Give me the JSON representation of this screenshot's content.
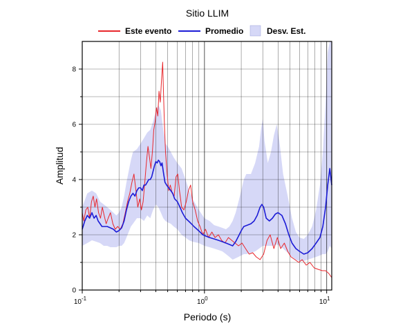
{
  "chart_data": {
    "type": "line",
    "title": "Sitio LLIM",
    "xlabel": "Periodo (s)",
    "ylabel": "Amplitud",
    "x_scale": "log",
    "xlim": [
      0.1,
      11
    ],
    "ylim": [
      0,
      9
    ],
    "x_ticks": [
      {
        "value": 0.1,
        "base": "10",
        "exp": "-1"
      },
      {
        "value": 1,
        "base": "10",
        "exp": "0"
      },
      {
        "value": 10,
        "base": "10",
        "exp": "1"
      }
    ],
    "y_ticks": [
      0,
      2,
      4,
      6,
      8
    ],
    "grid": true,
    "legend": {
      "position": "top",
      "entries": [
        {
          "label": "Este evento",
          "kind": "line",
          "color": "#e8262b"
        },
        {
          "label": "Promedio",
          "kind": "line",
          "color": "#1b1bd6"
        },
        {
          "label": "Desv. Est.",
          "kind": "patch",
          "color": "#d6d8f7"
        }
      ]
    },
    "series": [
      {
        "name": "Este evento",
        "color": "#e8262b",
        "points": [
          [
            0.1,
            2.8
          ],
          [
            0.103,
            2.5
          ],
          [
            0.107,
            2.9
          ],
          [
            0.111,
            3.0
          ],
          [
            0.115,
            2.6
          ],
          [
            0.119,
            3.2
          ],
          [
            0.123,
            3.4
          ],
          [
            0.127,
            3.0
          ],
          [
            0.131,
            3.3
          ],
          [
            0.136,
            2.8
          ],
          [
            0.141,
            2.6
          ],
          [
            0.146,
            3.0
          ],
          [
            0.151,
            2.7
          ],
          [
            0.157,
            2.4
          ],
          [
            0.163,
            2.6
          ],
          [
            0.17,
            2.8
          ],
          [
            0.178,
            2.4
          ],
          [
            0.186,
            2.2
          ],
          [
            0.195,
            2.3
          ],
          [
            0.205,
            2.2
          ],
          [
            0.215,
            2.4
          ],
          [
            0.225,
            2.8
          ],
          [
            0.235,
            3.2
          ],
          [
            0.245,
            3.5
          ],
          [
            0.255,
            3.9
          ],
          [
            0.265,
            4.2
          ],
          [
            0.275,
            3.6
          ],
          [
            0.285,
            3.0
          ],
          [
            0.295,
            3.3
          ],
          [
            0.305,
            2.9
          ],
          [
            0.315,
            3.2
          ],
          [
            0.325,
            3.9
          ],
          [
            0.335,
            4.6
          ],
          [
            0.345,
            5.2
          ],
          [
            0.355,
            4.8
          ],
          [
            0.365,
            4.4
          ],
          [
            0.375,
            5.0
          ],
          [
            0.385,
            5.8
          ],
          [
            0.395,
            6.1
          ],
          [
            0.405,
            6.6
          ],
          [
            0.415,
            6.3
          ],
          [
            0.425,
            7.2
          ],
          [
            0.435,
            6.8
          ],
          [
            0.445,
            7.6
          ],
          [
            0.455,
            8.25
          ],
          [
            0.462,
            7.2
          ],
          [
            0.47,
            6.0
          ],
          [
            0.48,
            5.0
          ],
          [
            0.495,
            4.2
          ],
          [
            0.51,
            3.6
          ],
          [
            0.525,
            3.8
          ],
          [
            0.545,
            3.5
          ],
          [
            0.565,
            3.4
          ],
          [
            0.585,
            4.1
          ],
          [
            0.605,
            4.2
          ],
          [
            0.625,
            3.6
          ],
          [
            0.65,
            3.0
          ],
          [
            0.68,
            2.9
          ],
          [
            0.71,
            3.2
          ],
          [
            0.74,
            3.6
          ],
          [
            0.77,
            3.8
          ],
          [
            0.8,
            3.2
          ],
          [
            0.84,
            2.9
          ],
          [
            0.88,
            2.5
          ],
          [
            0.92,
            2.3
          ],
          [
            0.97,
            2.0
          ],
          [
            1.02,
            2.2
          ],
          [
            1.08,
            1.9
          ],
          [
            1.15,
            2.1
          ],
          [
            1.22,
            1.9
          ],
          [
            1.3,
            2.0
          ],
          [
            1.38,
            1.8
          ],
          [
            1.47,
            1.7
          ],
          [
            1.57,
            1.9
          ],
          [
            1.67,
            1.8
          ],
          [
            1.78,
            1.7
          ],
          [
            1.9,
            1.6
          ],
          [
            2.03,
            1.7
          ],
          [
            2.17,
            1.5
          ],
          [
            2.32,
            1.3
          ],
          [
            2.48,
            1.35
          ],
          [
            2.65,
            1.2
          ],
          [
            2.85,
            1.1
          ],
          [
            3.05,
            1.3
          ],
          [
            3.25,
            1.8
          ],
          [
            3.45,
            2.0
          ],
          [
            3.7,
            1.5
          ],
          [
            3.95,
            1.9
          ],
          [
            4.2,
            1.5
          ],
          [
            4.5,
            1.7
          ],
          [
            4.8,
            1.4
          ],
          [
            5.1,
            1.2
          ],
          [
            5.5,
            1.1
          ],
          [
            5.9,
            1.0
          ],
          [
            6.3,
            1.1
          ],
          [
            6.8,
            0.9
          ],
          [
            7.3,
            1.0
          ],
          [
            7.9,
            0.8
          ],
          [
            8.5,
            0.75
          ],
          [
            9.2,
            0.7
          ],
          [
            9.8,
            0.7
          ],
          [
            10.4,
            0.6
          ],
          [
            11.0,
            0.45
          ]
        ]
      },
      {
        "name": "Promedio",
        "color": "#1b1bd6",
        "points": [
          [
            0.1,
            2.2
          ],
          [
            0.105,
            2.5
          ],
          [
            0.11,
            2.7
          ],
          [
            0.115,
            2.6
          ],
          [
            0.12,
            2.8
          ],
          [
            0.125,
            2.6
          ],
          [
            0.13,
            2.7
          ],
          [
            0.135,
            2.5
          ],
          [
            0.14,
            2.4
          ],
          [
            0.145,
            2.3
          ],
          [
            0.15,
            2.3
          ],
          [
            0.16,
            2.3
          ],
          [
            0.17,
            2.25
          ],
          [
            0.18,
            2.2
          ],
          [
            0.19,
            2.1
          ],
          [
            0.2,
            2.15
          ],
          [
            0.21,
            2.25
          ],
          [
            0.22,
            2.5
          ],
          [
            0.23,
            2.9
          ],
          [
            0.24,
            3.2
          ],
          [
            0.25,
            3.4
          ],
          [
            0.26,
            3.5
          ],
          [
            0.27,
            3.4
          ],
          [
            0.28,
            3.6
          ],
          [
            0.29,
            3.7
          ],
          [
            0.3,
            3.7
          ],
          [
            0.31,
            3.6
          ],
          [
            0.32,
            3.8
          ],
          [
            0.33,
            3.8
          ],
          [
            0.34,
            3.9
          ],
          [
            0.35,
            4.0
          ],
          [
            0.36,
            4.0
          ],
          [
            0.37,
            4.1
          ],
          [
            0.38,
            4.3
          ],
          [
            0.39,
            4.5
          ],
          [
            0.4,
            4.65
          ],
          [
            0.41,
            4.6
          ],
          [
            0.42,
            4.7
          ],
          [
            0.43,
            4.65
          ],
          [
            0.44,
            4.5
          ],
          [
            0.45,
            4.6
          ],
          [
            0.46,
            4.3
          ],
          [
            0.475,
            3.9
          ],
          [
            0.49,
            3.8
          ],
          [
            0.51,
            3.7
          ],
          [
            0.53,
            3.6
          ],
          [
            0.55,
            3.5
          ],
          [
            0.57,
            3.3
          ],
          [
            0.6,
            3.2
          ],
          [
            0.63,
            3.0
          ],
          [
            0.66,
            2.8
          ],
          [
            0.7,
            2.6
          ],
          [
            0.74,
            2.5
          ],
          [
            0.78,
            2.4
          ],
          [
            0.82,
            2.3
          ],
          [
            0.87,
            2.2
          ],
          [
            0.92,
            2.1
          ],
          [
            0.97,
            2.0
          ],
          [
            1.03,
            1.95
          ],
          [
            1.1,
            1.9
          ],
          [
            1.2,
            1.85
          ],
          [
            1.3,
            1.8
          ],
          [
            1.4,
            1.75
          ],
          [
            1.5,
            1.7
          ],
          [
            1.6,
            1.65
          ],
          [
            1.7,
            1.6
          ],
          [
            1.8,
            1.75
          ],
          [
            1.9,
            1.95
          ],
          [
            2.0,
            2.15
          ],
          [
            2.1,
            2.3
          ],
          [
            2.25,
            2.35
          ],
          [
            2.4,
            2.4
          ],
          [
            2.55,
            2.5
          ],
          [
            2.7,
            2.7
          ],
          [
            2.85,
            3.0
          ],
          [
            2.95,
            3.1
          ],
          [
            3.05,
            3.0
          ],
          [
            3.2,
            2.6
          ],
          [
            3.4,
            2.5
          ],
          [
            3.6,
            2.6
          ],
          [
            3.8,
            2.75
          ],
          [
            4.0,
            2.8
          ],
          [
            4.3,
            2.7
          ],
          [
            4.6,
            2.4
          ],
          [
            4.9,
            2.0
          ],
          [
            5.2,
            1.7
          ],
          [
            5.6,
            1.5
          ],
          [
            6.0,
            1.4
          ],
          [
            6.5,
            1.3
          ],
          [
            7.0,
            1.35
          ],
          [
            7.6,
            1.5
          ],
          [
            8.2,
            1.7
          ],
          [
            8.8,
            1.9
          ],
          [
            9.3,
            2.3
          ],
          [
            9.8,
            3.0
          ],
          [
            10.2,
            3.8
          ],
          [
            10.6,
            4.4
          ],
          [
            11.0,
            3.8
          ]
        ]
      }
    ],
    "std_band": {
      "name": "Desv. Est.",
      "color": "#d6d8f7",
      "points": [
        [
          0.1,
          1.6,
          3.0
        ],
        [
          0.11,
          1.7,
          3.5
        ],
        [
          0.12,
          1.8,
          3.6
        ],
        [
          0.13,
          1.75,
          3.5
        ],
        [
          0.14,
          1.7,
          3.2
        ],
        [
          0.15,
          1.6,
          3.1
        ],
        [
          0.16,
          1.6,
          3.0
        ],
        [
          0.17,
          1.55,
          2.9
        ],
        [
          0.18,
          1.55,
          2.8
        ],
        [
          0.19,
          1.55,
          2.7
        ],
        [
          0.2,
          1.6,
          2.8
        ],
        [
          0.21,
          1.6,
          3.0
        ],
        [
          0.22,
          1.7,
          3.4
        ],
        [
          0.23,
          1.9,
          3.9
        ],
        [
          0.24,
          2.1,
          4.3
        ],
        [
          0.25,
          2.3,
          4.7
        ],
        [
          0.26,
          2.4,
          5.0
        ],
        [
          0.28,
          2.6,
          5.1
        ],
        [
          0.3,
          2.6,
          5.3
        ],
        [
          0.32,
          2.5,
          5.5
        ],
        [
          0.34,
          2.7,
          5.7
        ],
        [
          0.36,
          2.6,
          5.8
        ],
        [
          0.38,
          2.9,
          6.1
        ],
        [
          0.4,
          3.1,
          6.5
        ],
        [
          0.42,
          3.0,
          6.7
        ],
        [
          0.44,
          2.8,
          6.5
        ],
        [
          0.46,
          2.6,
          5.8
        ],
        [
          0.48,
          2.5,
          5.3
        ],
        [
          0.5,
          2.45,
          5.2
        ],
        [
          0.53,
          2.4,
          5.0
        ],
        [
          0.56,
          2.3,
          4.8
        ],
        [
          0.6,
          2.2,
          4.6
        ],
        [
          0.65,
          2.0,
          4.4
        ],
        [
          0.7,
          1.9,
          4.0
        ],
        [
          0.75,
          1.8,
          3.6
        ],
        [
          0.8,
          1.75,
          3.3
        ],
        [
          0.9,
          1.7,
          2.9
        ],
        [
          1.0,
          1.6,
          2.6
        ],
        [
          1.1,
          1.55,
          2.5
        ],
        [
          1.2,
          1.5,
          2.35
        ],
        [
          1.3,
          1.45,
          2.3
        ],
        [
          1.4,
          1.4,
          2.25
        ],
        [
          1.5,
          1.3,
          2.2
        ],
        [
          1.6,
          1.2,
          2.3
        ],
        [
          1.7,
          1.1,
          2.5
        ],
        [
          1.8,
          1.15,
          2.8
        ],
        [
          1.9,
          1.2,
          3.2
        ],
        [
          2.0,
          1.25,
          3.6
        ],
        [
          2.1,
          1.3,
          4.0
        ],
        [
          2.2,
          1.3,
          4.2
        ],
        [
          2.4,
          1.35,
          4.2
        ],
        [
          2.6,
          1.4,
          4.6
        ],
        [
          2.8,
          1.5,
          5.2
        ],
        [
          2.9,
          1.55,
          5.8
        ],
        [
          3.0,
          1.6,
          6.2
        ],
        [
          3.1,
          1.6,
          5.4
        ],
        [
          3.3,
          1.6,
          4.6
        ],
        [
          3.5,
          1.6,
          5.0
        ],
        [
          3.7,
          1.6,
          5.6
        ],
        [
          3.9,
          1.65,
          6.0
        ],
        [
          4.1,
          1.6,
          5.4
        ],
        [
          4.4,
          1.5,
          4.2
        ],
        [
          4.8,
          1.35,
          3.4
        ],
        [
          5.2,
          1.2,
          2.6
        ],
        [
          5.6,
          1.1,
          2.1
        ],
        [
          6.0,
          1.05,
          1.9
        ],
        [
          6.5,
          1.05,
          1.85
        ],
        [
          7.0,
          1.1,
          2.0
        ],
        [
          7.6,
          1.15,
          2.3
        ],
        [
          8.2,
          1.2,
          2.9
        ],
        [
          8.8,
          1.25,
          3.8
        ],
        [
          9.3,
          1.3,
          5.0
        ],
        [
          9.8,
          1.3,
          6.8
        ],
        [
          10.2,
          1.4,
          8.6
        ],
        [
          10.6,
          1.6,
          9.0
        ],
        [
          11.0,
          1.5,
          9.0
        ]
      ]
    }
  }
}
